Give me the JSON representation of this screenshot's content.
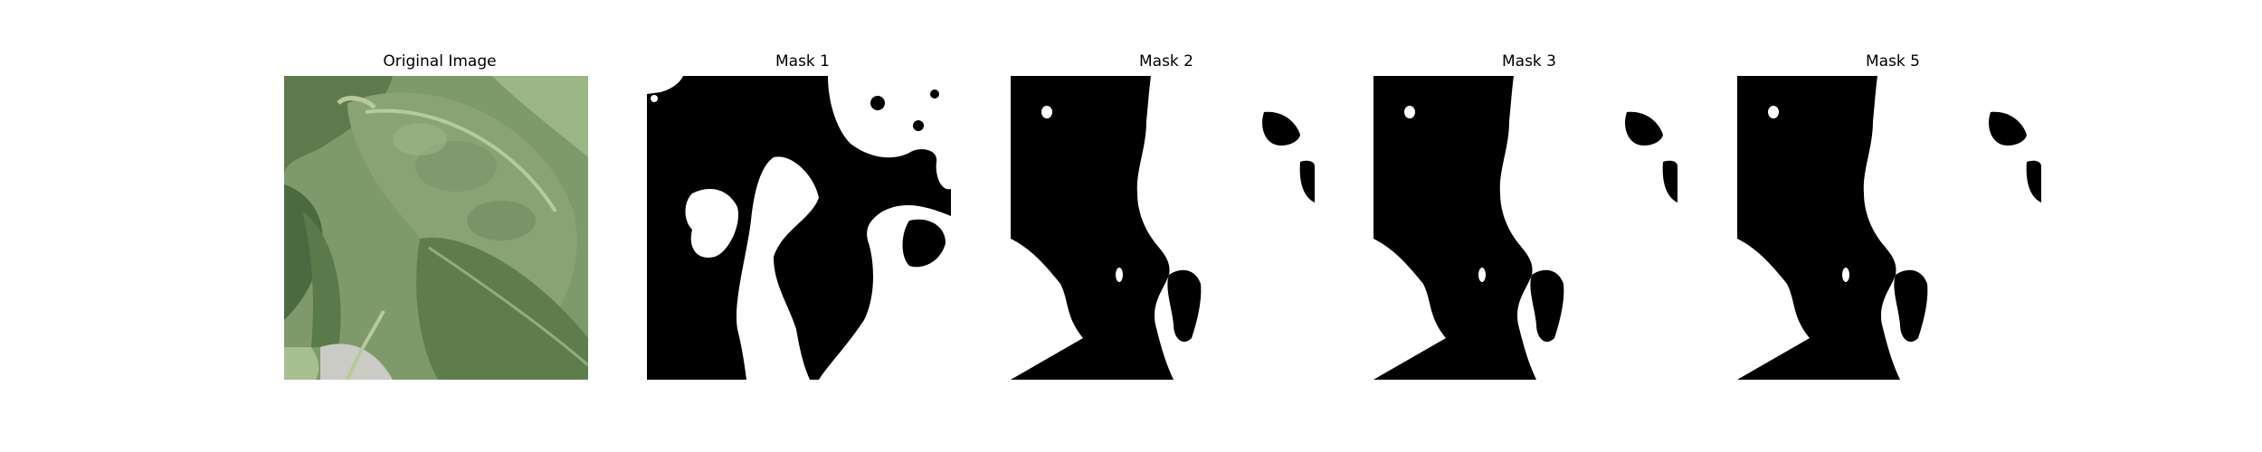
{
  "figure": {
    "panels": [
      {
        "title": "Original Image",
        "kind": "photo",
        "subject": "green leaf close-up"
      },
      {
        "title": "Mask 1",
        "kind": "binary-mask"
      },
      {
        "title": "Mask 2",
        "kind": "binary-mask"
      },
      {
        "title": "Mask 3",
        "kind": "binary-mask"
      },
      {
        "title": "Mask 5",
        "kind": "binary-mask"
      }
    ]
  },
  "colors": {
    "mask_foreground": "#ffffff",
    "mask_background": "#000000",
    "leaf_dark": "#4f6e43",
    "leaf_mid": "#7f9a6a",
    "leaf_light": "#a8bf92",
    "background_gray": "#c9cbc4"
  }
}
